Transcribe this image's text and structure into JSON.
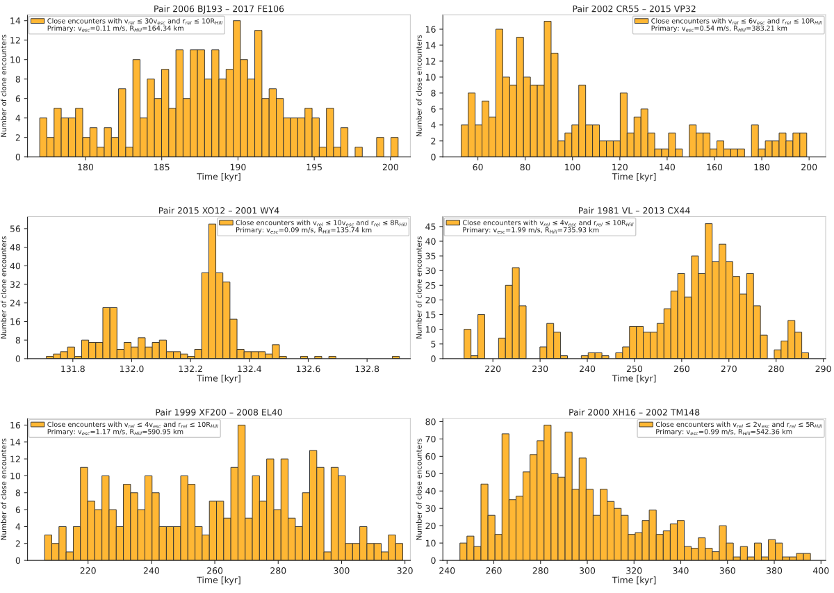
{
  "chart_data": [
    {
      "type": "histogram",
      "title": "Pair 2006 BJ193 – 2017 FE106",
      "xlabel": "Time [kyr]",
      "ylabel": "Number of clone encounters",
      "legend": "top left",
      "xlim": [
        176.2,
        201.3
      ],
      "xticks": [
        180,
        185,
        190,
        195,
        200
      ],
      "ylim": [
        0,
        14.6
      ],
      "yticks": [
        0,
        2,
        4,
        6,
        8,
        10,
        12,
        14
      ],
      "annotations": [
        "Primary: v$_{esc}$=0.11 m/s, R$_{Hill}$=164.34 km"
      ],
      "bins": [
        177.0,
        177.47,
        177.94,
        178.41,
        178.88,
        179.35,
        179.82,
        180.29,
        180.76,
        181.23,
        181.7,
        182.17,
        182.64,
        183.11,
        183.58,
        184.05,
        184.52,
        184.99,
        185.46,
        185.93,
        186.4,
        186.87,
        187.34,
        187.81,
        188.28,
        188.75,
        189.22,
        189.69,
        190.16,
        190.63,
        191.1,
        191.57,
        192.04,
        192.51,
        192.98,
        193.45,
        193.92,
        194.39,
        194.86,
        195.33,
        195.8,
        196.27,
        196.74,
        197.21,
        197.68,
        198.15,
        198.62,
        199.09,
        199.56,
        200.03,
        200.5
      ],
      "series": [
        {
          "name": "Close encounters with v$_{rel}$ ≤ 30v$_{esc}$ and r$_{rel}$ ≤ 10R$_{Hill}$",
          "color": "#ffb734",
          "values": [
            4,
            2,
            5,
            4,
            4,
            5,
            2,
            3,
            1,
            3,
            2,
            7,
            1,
            10,
            4,
            8,
            6,
            9,
            5,
            11,
            6,
            11,
            11,
            8,
            11,
            8,
            9,
            14,
            10,
            8,
            13,
            6,
            7,
            6,
            4,
            4,
            4,
            5,
            4,
            1,
            5,
            1,
            3,
            0,
            1,
            0,
            0,
            2,
            0,
            2
          ]
        }
      ]
    },
    {
      "type": "histogram",
      "title": "Pair 2002 CR55 – 2015 VP32",
      "xlabel": "Time [kyr]",
      "ylabel": "Number of close encounters",
      "legend": "top right",
      "xlim": [
        45.2,
        207.0
      ],
      "xticks": [
        60,
        80,
        100,
        120,
        140,
        160,
        180,
        200
      ],
      "ylim": [
        0,
        17.8
      ],
      "yticks": [
        0,
        2,
        4,
        6,
        8,
        10,
        12,
        14,
        16
      ],
      "annotations": [
        "Primary: v$_{esc}$=0.54 m/s, R$_{Hill}$=383.21 km"
      ],
      "bins": [
        53.0,
        55.92,
        58.84,
        61.76,
        64.68,
        67.6,
        70.52,
        73.44,
        76.36,
        79.28,
        82.2,
        85.12,
        88.04,
        90.96,
        93.88,
        96.8,
        99.72,
        102.64,
        105.56,
        108.48,
        111.4,
        114.32,
        117.24,
        120.16,
        123.08,
        126.0,
        128.92,
        131.84,
        134.76,
        137.68,
        140.6,
        143.52,
        146.44,
        149.36,
        152.28,
        155.2,
        158.12,
        161.04,
        163.96,
        166.88,
        169.8,
        172.72,
        175.64,
        178.56,
        181.48,
        184.4,
        187.32,
        190.24,
        193.16,
        196.08,
        199.0
      ],
      "series": [
        {
          "name": "Close encounters with v$_{rel}$ ≤ 6v$_{esc}$ and r$_{rel}$ ≤ 10R$_{Hill}$",
          "color": "#ffb734",
          "values": [
            4,
            8,
            4,
            7,
            5,
            16,
            10,
            9,
            15,
            10,
            9,
            9,
            17,
            13,
            2,
            3,
            4,
            9,
            4,
            4,
            2,
            2,
            2,
            8,
            3,
            5,
            6,
            3,
            1,
            1,
            3,
            1,
            0,
            4,
            3,
            3,
            1,
            2,
            1,
            1,
            1,
            0,
            4,
            1,
            2,
            2,
            3,
            2,
            3,
            3
          ]
        }
      ]
    },
    {
      "type": "histogram",
      "title": "Pair 2015 XO12 – 2001 WY4",
      "xlabel": "Time [kyr]",
      "ylabel": "Number of clone encounters",
      "legend": "top right",
      "xlim": [
        131.646,
        132.947
      ],
      "xticks": [
        {
          "value": 131.8,
          "label": "131.8"
        },
        {
          "value": 132.0,
          "label": "132.0"
        },
        {
          "value": 132.2,
          "label": "132.2"
        },
        {
          "value": 132.4,
          "label": "132.4"
        },
        {
          "value": 132.6,
          "label": "132.6"
        },
        {
          "value": 132.8,
          "label": "132.8"
        }
      ],
      "ylim": [
        0,
        61.2
      ],
      "yticks": [
        0,
        8,
        16,
        24,
        32,
        40,
        48,
        56
      ],
      "annotations": [
        "Primary: v$_{esc}$=0.09 m/s, R$_{Hill}$=135.74 km"
      ],
      "bins": [
        131.71,
        131.734,
        131.758,
        131.782,
        131.806,
        131.83,
        131.854,
        131.878,
        131.902,
        131.926,
        131.95,
        131.974,
        131.998,
        132.022,
        132.046,
        132.07,
        132.094,
        132.118,
        132.142,
        132.166,
        132.19,
        132.214,
        132.238,
        132.262,
        132.286,
        132.31,
        132.334,
        132.358,
        132.382,
        132.406,
        132.43,
        132.454,
        132.478,
        132.502,
        132.526,
        132.55,
        132.574,
        132.598,
        132.622,
        132.646,
        132.67,
        132.694,
        132.718,
        132.742,
        132.766,
        132.79,
        132.814,
        132.838,
        132.862,
        132.886,
        132.91
      ],
      "series": [
        {
          "name": "Close encounters with v$_{rel}$ ≤ 10v$_{esc}$ and r$_{rel}$ ≤ 8R$_{Hill}$",
          "color": "#ffb734",
          "values": [
            1,
            2,
            3,
            5,
            1,
            8,
            7,
            7,
            22,
            22,
            4,
            7,
            5,
            9,
            5,
            7,
            8,
            3,
            3,
            2,
            1,
            4,
            37,
            58,
            37,
            33,
            17,
            4,
            3,
            3,
            3,
            2,
            6,
            1,
            0,
            0,
            1,
            0,
            1,
            0,
            1,
            0,
            0,
            0,
            0,
            0,
            0,
            0,
            0,
            1
          ]
        }
      ]
    },
    {
      "type": "histogram",
      "title": "Pair 1981 VL – 2013 CX44",
      "xlabel": "Time [kyr]",
      "ylabel": "Number of clone encounters",
      "legend": "top left",
      "xlim": [
        209.4,
        290.5
      ],
      "xticks": [
        220,
        230,
        240,
        250,
        260,
        270,
        280,
        290
      ],
      "ylim": [
        0,
        48.4
      ],
      "yticks": [
        0,
        5,
        10,
        15,
        20,
        25,
        30,
        35,
        40,
        45
      ],
      "annotations": [
        "Primary: v$_{esc}$=1.99 m/s, R$_{Hill}$=735.93 km"
      ],
      "bins": [
        213.9,
        215.36,
        216.82,
        218.28,
        219.74,
        221.2,
        222.66,
        224.12,
        225.58,
        227.04,
        228.5,
        229.96,
        231.42,
        232.88,
        234.34,
        235.8,
        237.26,
        238.72,
        240.18,
        241.64,
        243.1,
        244.56,
        246.02,
        247.48,
        248.94,
        250.4,
        251.86,
        253.32,
        254.78,
        256.24,
        257.7,
        259.16,
        260.62,
        262.08,
        263.54,
        265.0,
        266.46,
        267.92,
        269.38,
        270.84,
        272.3,
        273.76,
        275.22,
        276.68,
        278.14,
        279.6,
        281.06,
        282.52,
        283.98,
        285.44,
        286.9
      ],
      "series": [
        {
          "name": "Close encounters with v$_{rel}$ ≤ 4v$_{esc}$ and r$_{rel}$ ≤ 10R$_{Hill}$",
          "color": "#ffb734",
          "values": [
            10,
            1,
            15,
            0,
            0,
            7,
            25,
            31,
            18,
            0,
            0,
            4,
            12,
            9,
            1,
            0,
            0,
            1,
            2,
            2,
            1,
            0,
            2,
            4,
            11,
            11,
            9,
            9,
            12,
            17,
            23,
            29,
            21,
            35,
            29,
            46,
            33,
            39,
            33,
            28,
            22,
            29,
            18,
            8,
            0,
            3,
            6,
            13,
            9,
            2
          ]
        }
      ]
    },
    {
      "type": "histogram",
      "title": "Pair 1999 XF200 – 2008 EL40",
      "xlabel": "Time [kyr]",
      "ylabel": "Number of close encounters",
      "legend": "top left",
      "xlim": [
        200.9,
        321.7
      ],
      "xticks": [
        220,
        240,
        260,
        280,
        300,
        320
      ],
      "ylim": [
        0,
        16.8
      ],
      "yticks": [
        0,
        2,
        4,
        6,
        8,
        10,
        12,
        14,
        16
      ],
      "annotations": [
        "Primary: v$_{esc}$=1.17 m/s, R$_{Hill}$=590.95 km"
      ],
      "bins": [
        206.3,
        208.56,
        210.82,
        213.08,
        215.34,
        217.6,
        219.86,
        222.12,
        224.38,
        226.64,
        228.9,
        231.16,
        233.42,
        235.68,
        237.94,
        240.2,
        242.46,
        244.72,
        246.98,
        249.24,
        251.5,
        253.76,
        256.02,
        258.28,
        260.54,
        262.8,
        265.06,
        267.32,
        269.58,
        271.84,
        274.1,
        276.36,
        278.62,
        280.88,
        283.14,
        285.4,
        287.66,
        289.92,
        292.18,
        294.44,
        296.7,
        298.96,
        301.22,
        303.48,
        305.74,
        308.0,
        310.26,
        312.52,
        314.78,
        317.04,
        319.3
      ],
      "series": [
        {
          "name": "Close encounters with v$_{rel}$ ≤ 4v$_{esc}$ and r$_{rel}$ ≤ 10R$_{Hill}$",
          "color": "#ffb734",
          "values": [
            3,
            2,
            4,
            1,
            4,
            11,
            7,
            6,
            10,
            6,
            4,
            9,
            8,
            6,
            10,
            8,
            4,
            4,
            4,
            10,
            9,
            4,
            3,
            7,
            7,
            5,
            11,
            16,
            5,
            10,
            7,
            12,
            6,
            12,
            5,
            4,
            8,
            13,
            11,
            1,
            11,
            10,
            2,
            2,
            4,
            2,
            2,
            1,
            3,
            2
          ]
        }
      ]
    },
    {
      "type": "histogram",
      "title": "Pair 2000 XH16 – 2002 TM148",
      "xlabel": "Time [kyr]",
      "ylabel": "Number of close encounters",
      "legend": "top right",
      "xlim": [
        238.2,
        402.0
      ],
      "xticks": [
        240,
        260,
        280,
        300,
        320,
        340,
        360,
        380,
        400
      ],
      "ylim": [
        0,
        81.9
      ],
      "yticks": [
        0,
        10,
        20,
        30,
        40,
        50,
        60,
        70,
        80
      ],
      "annotations": [
        "Primary: v$_{esc}$=0.99 m/s, R$_{Hill}$=542.36 km"
      ],
      "bins": [
        245.5,
        248.5,
        251.5,
        254.5,
        257.5,
        260.5,
        263.5,
        266.5,
        269.5,
        272.5,
        275.5,
        278.5,
        281.5,
        284.5,
        287.5,
        290.5,
        293.5,
        296.5,
        299.5,
        302.5,
        305.5,
        308.5,
        311.5,
        314.5,
        317.5,
        320.5,
        323.5,
        326.5,
        329.5,
        332.5,
        335.5,
        338.5,
        341.5,
        344.5,
        347.5,
        350.5,
        353.5,
        356.5,
        359.5,
        362.5,
        365.5,
        368.5,
        371.5,
        374.5,
        377.5,
        380.5,
        383.5,
        386.5,
        389.5,
        392.5,
        395.5
      ],
      "series": [
        {
          "name": "Close encounters with v$_{rel}$ ≤ 2v$_{esc}$ and r$_{rel}$ ≤ 5R$_{Hill}$",
          "color": "#ffb734",
          "values": [
            10,
            14,
            8,
            44,
            26,
            15,
            73,
            35,
            37,
            51,
            61,
            69,
            78,
            50,
            48,
            74,
            41,
            59,
            41,
            26,
            41,
            34,
            30,
            26,
            15,
            16,
            23,
            29,
            15,
            17,
            21,
            23,
            8,
            7,
            13,
            7,
            5,
            20,
            10,
            2,
            8,
            2,
            10,
            2,
            12,
            10,
            2,
            2,
            4,
            4
          ]
        }
      ]
    }
  ]
}
